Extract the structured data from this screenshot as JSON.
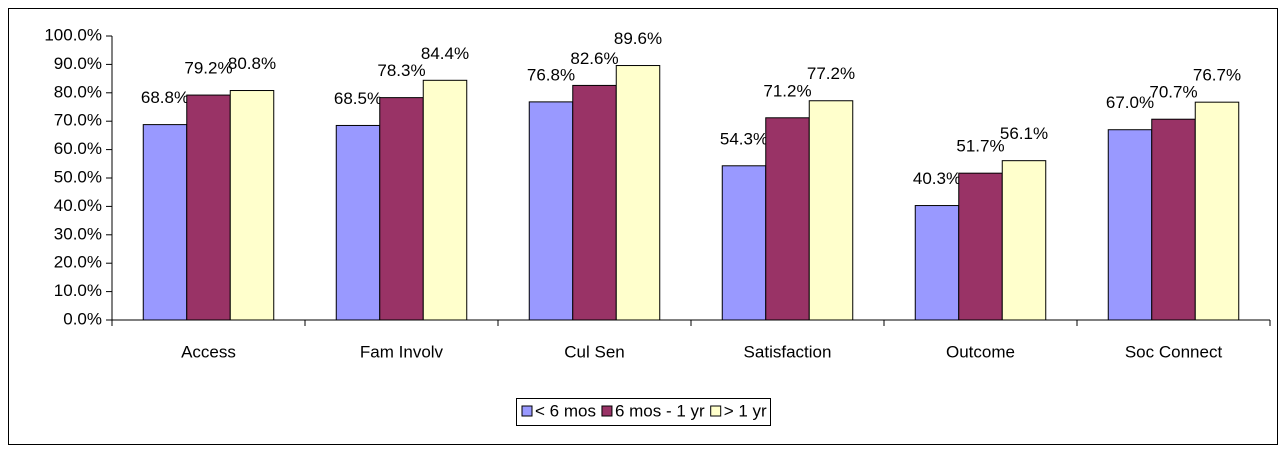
{
  "chart_data": {
    "type": "bar",
    "categories": [
      "Access",
      "Fam Involv",
      "Cul Sen",
      "Satisfaction",
      "Outcome",
      "Soc Connect"
    ],
    "series": [
      {
        "name": "< 6 mos",
        "color": "#9999ff",
        "values": [
          68.8,
          68.5,
          76.8,
          54.3,
          40.3,
          67.0
        ],
        "value_labels": [
          "68.8%",
          "68.5%",
          "76.8%",
          "54.3%",
          "40.3%",
          "67.0%"
        ]
      },
      {
        "name": "6 mos - 1 yr",
        "color": "#993366",
        "values": [
          79.2,
          78.3,
          82.6,
          71.2,
          51.7,
          70.7
        ],
        "value_labels": [
          "79.2%",
          "78.3%",
          "82.6%",
          "71.2%",
          "51.7%",
          "70.7%"
        ]
      },
      {
        "name": "> 1 yr",
        "color": "#ffffcc",
        "values": [
          80.8,
          84.4,
          89.6,
          77.2,
          56.1,
          76.7
        ],
        "value_labels": [
          "80.8%",
          "84.4%",
          "89.6%",
          "77.2%",
          "56.1%",
          "76.7%"
        ]
      }
    ],
    "ylim": [
      0,
      100
    ],
    "yticks": [
      {
        "value": 0,
        "label": "0.0%"
      },
      {
        "value": 10,
        "label": "10.0%"
      },
      {
        "value": 20,
        "label": "20.0%"
      },
      {
        "value": 30,
        "label": "30.0%"
      },
      {
        "value": 40,
        "label": "40.0%"
      },
      {
        "value": 50,
        "label": "50.0%"
      },
      {
        "value": 60,
        "label": "60.0%"
      },
      {
        "value": 70,
        "label": "70.0%"
      },
      {
        "value": 80,
        "label": "80.0%"
      },
      {
        "value": 90,
        "label": "90.0%"
      },
      {
        "value": 100,
        "label": "100.0%"
      }
    ],
    "legend": "bottom"
  }
}
